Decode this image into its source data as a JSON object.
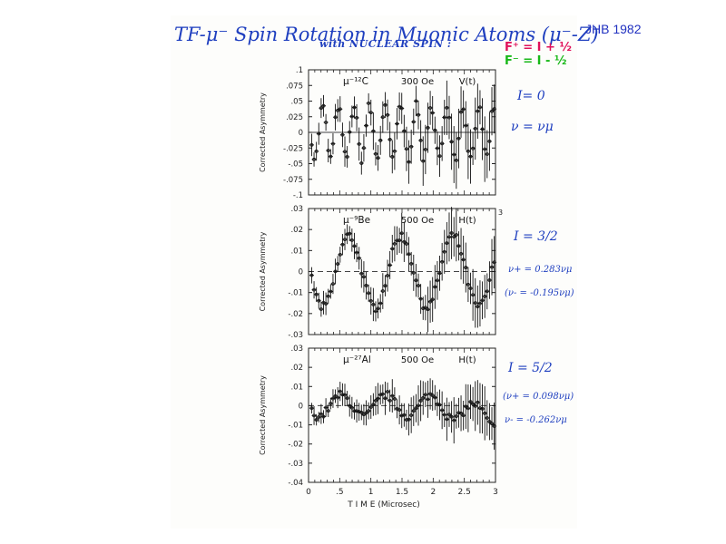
{
  "header": {
    "title": "TF-μ⁻ Spin Rotation in Muonic Atoms (μ⁻-Z)",
    "subtitle": "with NUCLEAR SPIN :",
    "credit": "JHB 1982",
    "f_plus": "F⁺ = I + ½",
    "f_minus": "F⁻ = I - ½"
  },
  "colors": {
    "ink": "#1f3fbf",
    "pink": "#e0105a",
    "green": "#18b818",
    "data": "#111111"
  },
  "shared_xaxis": {
    "label": "T I M E  (Microsec)",
    "ticks": [
      "0",
      ".5",
      "1",
      "1.5",
      "2",
      "2.5",
      "3"
    ],
    "tick_values": [
      0,
      0.5,
      1,
      1.5,
      2,
      2.5,
      3
    ],
    "range": [
      0,
      3
    ]
  },
  "chart_data": [
    {
      "type": "scatter",
      "panel_label": "μ⁻¹²C",
      "field": "300 Oe",
      "function": "V(t)",
      "ylabel": "Corrected Asymmetry",
      "yticks": [
        ".1",
        ".075",
        ".05",
        ".025",
        "0",
        "-.025",
        "-.05",
        "-.075",
        "-.1"
      ],
      "ytick_values": [
        0.1,
        0.075,
        0.05,
        0.025,
        0,
        -0.025,
        -0.05,
        -0.075,
        -0.1
      ],
      "ylim": [
        -0.1,
        0.1
      ],
      "xlim": [
        0,
        3
      ],
      "model": {
        "amplitude": 0.042,
        "frequency_mhz": 4.0,
        "decay": 0.0,
        "phase": 0.6
      },
      "errbar": 0.015,
      "side_notes": [
        "I= 0",
        "ν = νμ"
      ]
    },
    {
      "type": "scatter",
      "panel_label": "μ⁻⁹Be",
      "field": "500 Oe",
      "function": "H(t)",
      "ylabel": "Corrected Asymmetry",
      "yticks": [
        ".03",
        ".02",
        ".01",
        "0",
        "-.01",
        "-.02",
        "-.03"
      ],
      "ytick_values": [
        0.03,
        0.02,
        0.01,
        0,
        -0.01,
        -0.02,
        -0.03
      ],
      "ylim": [
        -0.03,
        0.03
      ],
      "xlim": [
        0,
        3
      ],
      "right_tick": "3",
      "model": {
        "amplitude": 0.017,
        "frequency_mhz": 1.2,
        "decay": 0.0,
        "phase": 1.4
      },
      "errbar": 0.004,
      "side_notes": [
        "I = 3/2",
        "ν+ = 0.283νμ",
        "(ν- = -0.195νμ)"
      ]
    },
    {
      "type": "scatter",
      "panel_label": "μ⁻²⁷Al",
      "field": "500 Oe",
      "function": "H(t)",
      "ylabel": "Corrected Asymmetry",
      "yticks": [
        ".03",
        ".02",
        ".01",
        "0",
        "-.01",
        "-.02",
        "-.03",
        "-.04"
      ],
      "ytick_values": [
        0.03,
        0.02,
        0.01,
        0,
        -0.01,
        -0.02,
        -0.03,
        -0.04
      ],
      "ylim": [
        -0.04,
        0.03
      ],
      "xlim": [
        0,
        3
      ],
      "model": {
        "amplitude": 0.0055,
        "frequency_mhz": 1.4,
        "decay": 0.0,
        "phase": 1.7
      },
      "errbar": 0.004,
      "side_notes": [
        "I = 5/2",
        "(ν+ = 0.098νμ)",
        "ν- = -0.262νμ"
      ]
    }
  ]
}
